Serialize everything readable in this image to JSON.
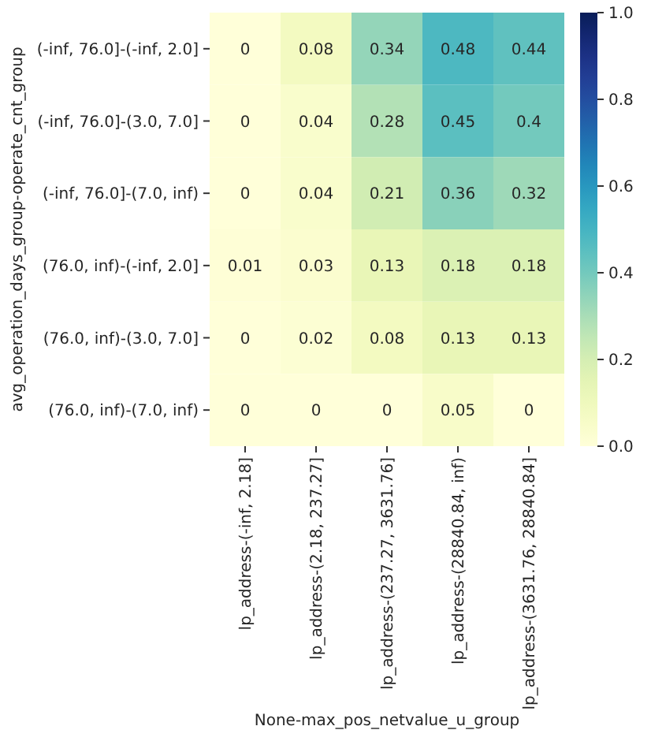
{
  "chart_data": {
    "type": "heatmap",
    "xlabel": "None-max_pos_netvalue_u_group",
    "ylabel": "avg_operation_days_group-operate_cnt_group",
    "categories": [
      "lp_address-(-inf, 2.18]",
      "lp_address-(2.18, 237.27]",
      "lp_address-(237.27, 3631.76]",
      "lp_address-(28840.84, inf)",
      "lp_address-(3631.76, 28840.84]"
    ],
    "y_categories": [
      "(-inf, 76.0]-(-inf, 2.0]",
      "(-inf, 76.0]-(3.0, 7.0]",
      "(-inf, 76.0]-(7.0, inf)",
      "(76.0, inf)-(-inf, 2.0]",
      "(76.0, inf)-(3.0, 7.0]",
      "(76.0, inf)-(7.0, inf)"
    ],
    "cells": [
      [
        0,
        0.08,
        0.34,
        0.48,
        0.44
      ],
      [
        0,
        0.04,
        0.28,
        0.45,
        0.4
      ],
      [
        0,
        0.04,
        0.21,
        0.36,
        0.32
      ],
      [
        0.01,
        0.03,
        0.13,
        0.18,
        0.18
      ],
      [
        0,
        0.02,
        0.08,
        0.13,
        0.13
      ],
      [
        0,
        0,
        0,
        0.05,
        0
      ]
    ],
    "clim": [
      0,
      1
    ],
    "cticks": [
      {
        "value": 0,
        "label": "0.0"
      },
      0.2,
      0.4,
      0.6,
      0.8,
      {
        "value": 1,
        "label": "1.0"
      }
    ],
    "data_labels": true
  }
}
